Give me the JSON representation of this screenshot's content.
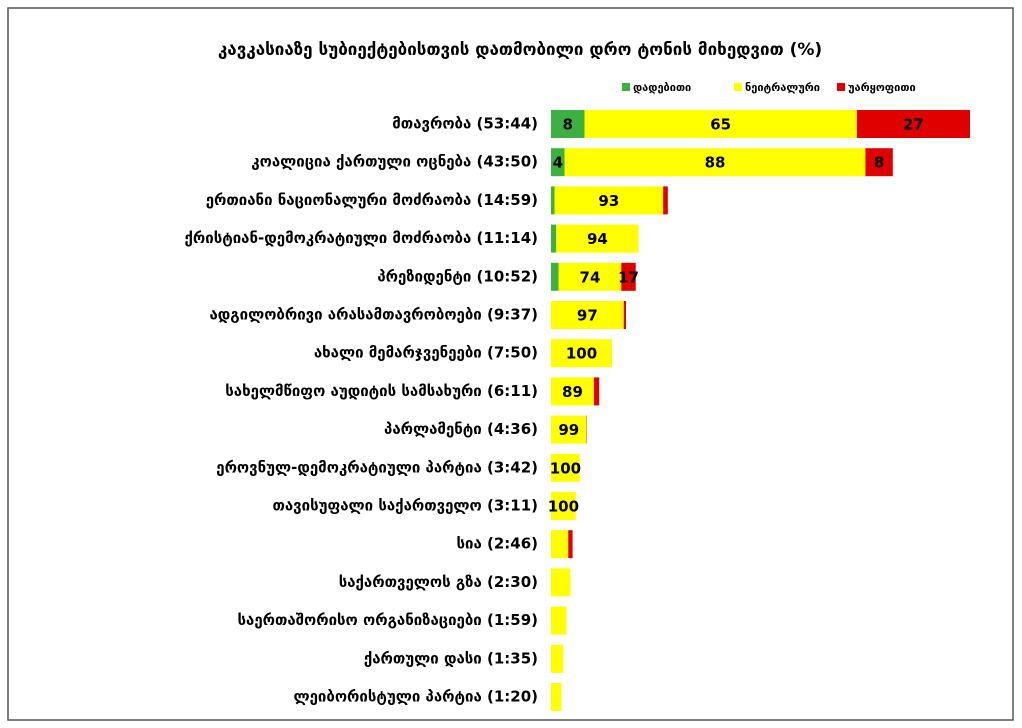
{
  "chart_data": {
    "type": "stacked-bar-horizontal",
    "title": "კავკასიაზე სუბიექტებისთვის დათმობილი დრო ტონის მიხედვით (%)",
    "categories": [
      "მთავრობა (53:44)",
      "კოალიცია ქართული ოცნება (43:50)",
      "ერთიანი ნაციონალური მოძრაობა (14:59)",
      "ქრისტიან-დემოკრატიული მოძრაობა (11:14)",
      "პრეზიდენტი (10:52)",
      "ადგილობრივი არასამთავრობოები (9:37)",
      "ახალი მემარჯვენეები (7:50)",
      "სახელმწიფო აუდიტის სამსახური (6:11)",
      "პარლამენტი (4:36)",
      "ეროვნულ-დემოკრატიული პარტია (3:42)",
      "თავისუფალი საქართველო (3:11)",
      "სია (2:46)",
      "საქართველოს გზა (2:30)",
      "საერთაშორისო ორგანიზაციები (1:59)",
      "ქართული დასი (1:35)",
      "ლეიბორისტული პარტია (1:20)"
    ],
    "series": [
      {
        "name": "დადებითი",
        "color": "#3cb043",
        "values": [
          8,
          4,
          3,
          6,
          9,
          0,
          0,
          0,
          0,
          0,
          0,
          0,
          0,
          0,
          0,
          0
        ],
        "value_labels": [
          "8",
          "4",
          null,
          null,
          null,
          null,
          null,
          null,
          null,
          null,
          null,
          null,
          null,
          null,
          null,
          null
        ]
      },
      {
        "name": "ნეიტრალური",
        "color": "#ffff00",
        "values": [
          65,
          88,
          93,
          94,
          74,
          97,
          100,
          89,
          99,
          100,
          100,
          80,
          100,
          100,
          100,
          100
        ],
        "value_labels": [
          "65",
          "88",
          "93",
          "94",
          "74",
          "97",
          "100",
          "89",
          "99",
          "100",
          "100",
          null,
          null,
          null,
          null,
          null
        ]
      },
      {
        "name": "უარყოფითი",
        "color": "#e00000",
        "values": [
          27,
          8,
          4,
          0,
          17,
          3,
          0,
          11,
          1,
          0,
          0,
          20,
          0,
          0,
          0,
          0
        ],
        "value_labels": [
          "27",
          "8",
          null,
          null,
          "17",
          null,
          null,
          null,
          null,
          null,
          null,
          null,
          null,
          null,
          null,
          null
        ]
      }
    ],
    "legend": "top-right"
  }
}
